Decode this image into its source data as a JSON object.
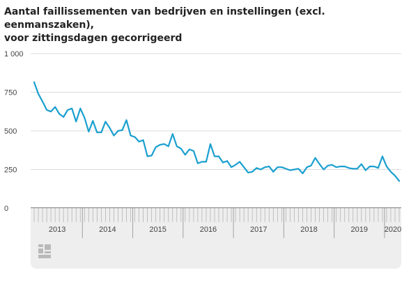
{
  "title_line1": "Aantal faillissementen van bedrijven en instellingen (excl. eenmanszaken),",
  "title_line2": "voor zittingsdagen gecorrigeerd",
  "colors": {
    "line": "#1a9fcf",
    "grid": "#dcdcdc",
    "axis": "#333333",
    "text": "#444444",
    "band": "#eeeeee"
  },
  "chart_data": {
    "type": "line",
    "title": "Aantal faillissementen van bedrijven en instellingen (excl. eenmanszaken), voor zittingsdagen gecorrigeerd",
    "ylim": [
      0,
      1000
    ],
    "yticks": [
      0,
      250,
      500,
      750,
      1000
    ],
    "ytick_labels": [
      "0",
      "250",
      "500",
      "750",
      "1 000"
    ],
    "years": [
      "2013",
      "2014",
      "2015",
      "2016",
      "2017",
      "2018",
      "2019",
      "2020"
    ],
    "grid": true,
    "start": "2013-01",
    "values": [
      815,
      740,
      690,
      635,
      625,
      655,
      610,
      590,
      635,
      645,
      560,
      645,
      585,
      495,
      565,
      490,
      490,
      560,
      520,
      470,
      500,
      505,
      570,
      470,
      460,
      430,
      440,
      335,
      340,
      395,
      410,
      415,
      400,
      480,
      400,
      385,
      345,
      380,
      370,
      290,
      300,
      300,
      415,
      335,
      335,
      295,
      305,
      265,
      280,
      300,
      265,
      230,
      235,
      260,
      250,
      265,
      270,
      235,
      265,
      265,
      255,
      245,
      250,
      255,
      225,
      265,
      275,
      325,
      285,
      250,
      275,
      280,
      265,
      270,
      270,
      260,
      255,
      255,
      285,
      245,
      270,
      270,
      260,
      335,
      270,
      235,
      210,
      175
    ]
  }
}
